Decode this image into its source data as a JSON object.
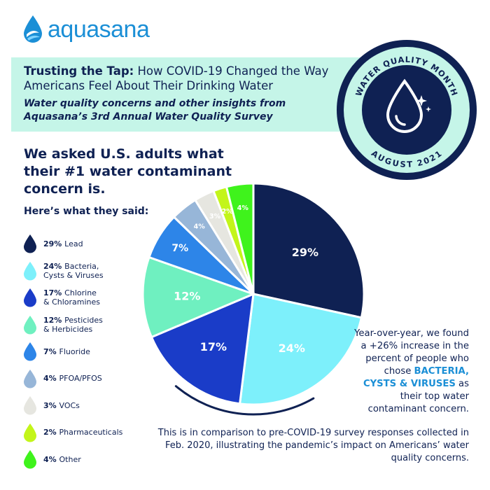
{
  "brand": {
    "name": "aquasana",
    "color": "#1b8fd6"
  },
  "banner": {
    "title_bold": "Trusting the Tap:",
    "title_rest": " How COVID-19 Changed the Way Americans Feel About Their Drinking Water",
    "subtitle": "Water quality concerns and other insights from Aquasana’s 3rd Annual Water Quality Survey",
    "bg_color": "#c5f5e8"
  },
  "badge": {
    "top_text": "WATER QUALITY MONTH",
    "bottom_text": "AUGUST 2021"
  },
  "question": "We asked U.S. adults what their #1 water contaminant concern is.",
  "answer_intro": "Here’s what they said:",
  "chart_data": {
    "type": "pie",
    "title": "",
    "start_angle_deg": 0,
    "direction": "clockwise",
    "slices": [
      {
        "label": "Lead",
        "pct_label": "29%",
        "value": 29,
        "color": "#0f2153",
        "label_color": "#ffffff",
        "show_label": true
      },
      {
        "label": "Bacteria,\nCysts & Viruses",
        "pct_label": "24%",
        "value": 24,
        "color": "#7df0fb",
        "label_color": "#ffffff",
        "show_label": true
      },
      {
        "label": "Chlorine\n& Chloramines",
        "pct_label": "17%",
        "value": 17,
        "color": "#1a3cc8",
        "label_color": "#ffffff",
        "show_label": true
      },
      {
        "label": "Pesticides\n& Herbicides",
        "pct_label": "12%",
        "value": 12,
        "color": "#6ff0c0",
        "label_color": "#ffffff",
        "show_label": true
      },
      {
        "label": "Fluoride",
        "pct_label": "7%",
        "value": 7,
        "color": "#2d85e8",
        "label_color": "#ffffff",
        "show_label": true
      },
      {
        "label": "PFOA/PFOS",
        "pct_label": "4%",
        "value": 4,
        "color": "#97b6d8",
        "label_color": "#ffffff",
        "show_label": true
      },
      {
        "label": "VOCs",
        "pct_label": "3%",
        "value": 3,
        "color": "#e6e6e0",
        "label_color": "#ffffff",
        "show_label": true
      },
      {
        "label": "Pharmaceuticals",
        "pct_label": "2%",
        "value": 2,
        "color": "#c3f51a",
        "label_color": "#ffffff",
        "show_label": true
      },
      {
        "label": "Other",
        "pct_label": "4%",
        "value": 4,
        "color": "#3ff31c",
        "label_color": "#ffffff",
        "show_label": true
      }
    ]
  },
  "callout": {
    "pre": "Year-over-year, we  found a +26% increase in the percent of people who chose ",
    "highlight": "BACTERIA, CYSTS & VIRUSES",
    "post": " as their top water contaminant concern."
  },
  "comparison": "This is in comparison to pre-COVID-19 survey responses collected in Feb. 2020, illustrating the pandemic’s impact on Americans’ water quality concerns."
}
